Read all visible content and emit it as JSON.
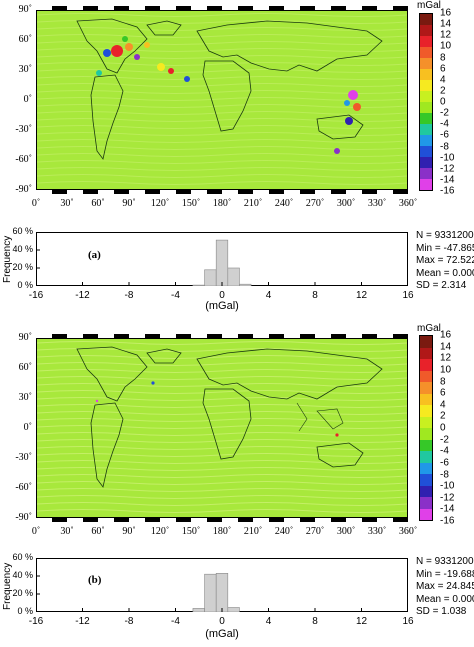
{
  "colorbar": {
    "unit": "mGal",
    "labels": [
      "16",
      "14",
      "12",
      "10",
      "8",
      "6",
      "4",
      "2",
      "0",
      "-2",
      "-4",
      "-6",
      "-8",
      "-10",
      "-12",
      "-14",
      "-16"
    ],
    "colors": [
      "#7a1a10",
      "#b01818",
      "#e8222a",
      "#f05a2a",
      "#f5902a",
      "#f8c020",
      "#f6ea20",
      "#c8f020",
      "#a0e820",
      "#36c828",
      "#20c8a0",
      "#2098e8",
      "#2050d8",
      "#3020b0",
      "#8a30c8",
      "#e040e8"
    ]
  },
  "map": {
    "lat_labels": [
      "90˚",
      "60˚",
      "30˚",
      "0˚",
      "-30˚",
      "-60˚",
      "-90˚"
    ],
    "lon_labels": [
      "0˚",
      "30˚",
      "60˚",
      "90˚",
      "120˚",
      "150˚",
      "180˚",
      "210˚",
      "240˚",
      "270˚",
      "300˚",
      "330˚",
      "360˚"
    ],
    "background_color": "#a8e83c"
  },
  "panels": [
    {
      "tag": "(a)",
      "histogram": {
        "ylabel": "Frequency",
        "xlabel": "(mGal)",
        "y_ticks": [
          "60 %",
          "40 %",
          "20 %",
          "0 %"
        ],
        "x_ticks": [
          "-16",
          "-12",
          "-8",
          "-4",
          "0",
          "4",
          "8",
          "12",
          "16"
        ],
        "xlim": [
          -16,
          16
        ],
        "ylim": [
          0,
          60
        ],
        "bins": [
          {
            "x": -2.0,
            "value": 1
          },
          {
            "x": -1.0,
            "value": 18
          },
          {
            "x": 0.0,
            "value": 51
          },
          {
            "x": 1.0,
            "value": 20
          },
          {
            "x": 2.0,
            "value": 2
          }
        ]
      },
      "stats": [
        "N = 9331200",
        "Min = -47.865",
        "Max = 72.522",
        "Mean = 0.000",
        "SD = 2.314"
      ]
    },
    {
      "tag": "(b)",
      "histogram": {
        "ylabel": "Frequency",
        "xlabel": "(mGal)",
        "y_ticks": [
          "60 %",
          "40 %",
          "20 %",
          "0 %"
        ],
        "x_ticks": [
          "-16",
          "-12",
          "-8",
          "-4",
          "0",
          "4",
          "8",
          "12",
          "16"
        ],
        "xlim": [
          -16,
          16
        ],
        "ylim": [
          0,
          60
        ],
        "bins": [
          {
            "x": -2.0,
            "value": 4
          },
          {
            "x": -1.0,
            "value": 42
          },
          {
            "x": 0.0,
            "value": 43
          },
          {
            "x": 1.0,
            "value": 5
          }
        ]
      },
      "stats": [
        "N = 9331200",
        "Min = -19.688",
        "Max = 24.845",
        "Mean = 0.000",
        "SD = 1.038"
      ]
    }
  ]
}
